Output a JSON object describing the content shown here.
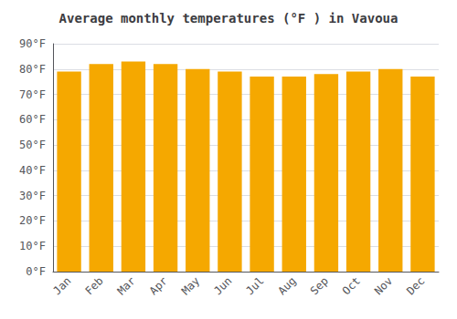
{
  "chart_data": {
    "type": "bar",
    "title": "Average monthly temperatures (°F ) in Vavoua",
    "categories": [
      "Jan",
      "Feb",
      "Mar",
      "Apr",
      "May",
      "Jun",
      "Jul",
      "Aug",
      "Sep",
      "Oct",
      "Nov",
      "Dec"
    ],
    "values": [
      79,
      82,
      83,
      82,
      80,
      79,
      77,
      77,
      78,
      79,
      80,
      77
    ],
    "color": "#F5A800",
    "ylim": [
      0,
      90
    ],
    "yticks": [
      {
        "value": 0,
        "label": "0°F"
      },
      {
        "value": 10,
        "label": "10°F"
      },
      {
        "value": 20,
        "label": "20°F"
      },
      {
        "value": 30,
        "label": "30°F"
      },
      {
        "value": 40,
        "label": "40°F"
      },
      {
        "value": 50,
        "label": "50°F"
      },
      {
        "value": 60,
        "label": "60°F"
      },
      {
        "value": 70,
        "label": "70°F"
      },
      {
        "value": 80,
        "label": "80°F"
      },
      {
        "value": 90,
        "label": "90°F"
      }
    ],
    "grid": true
  }
}
